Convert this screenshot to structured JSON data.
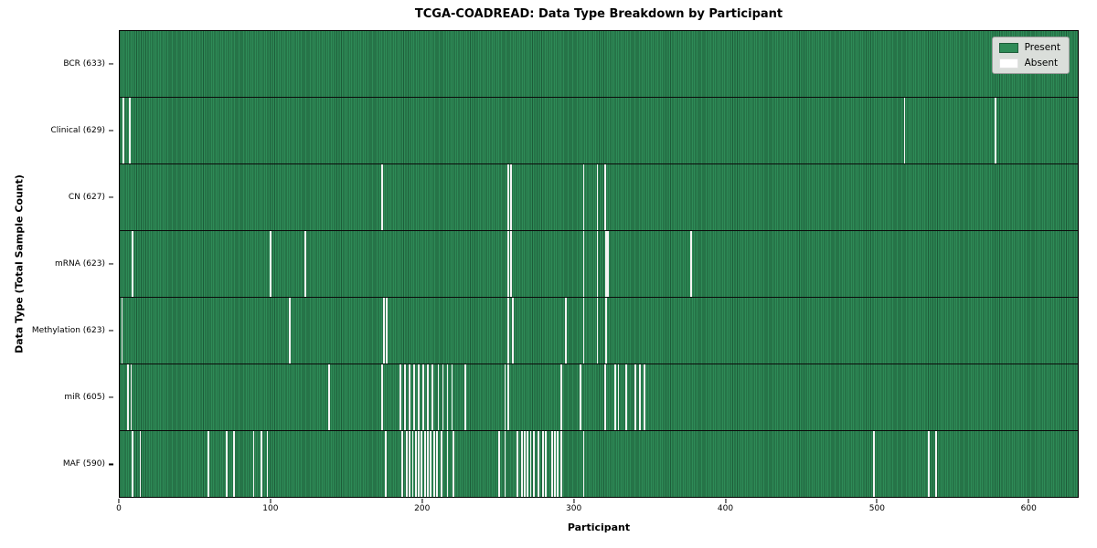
{
  "chart_data": {
    "type": "heatmap",
    "title": "TCGA-COADREAD: Data Type Breakdown by Participant",
    "xlabel": "Participant",
    "ylabel": "Data Type (Total Sample Count)",
    "x_max": 633,
    "x_ticks": [
      0,
      100,
      200,
      300,
      400,
      500,
      600
    ],
    "grid": false,
    "legend_position": "upper right",
    "legend_labels": [
      "Present",
      "Absent"
    ],
    "cell_semantics": "each column is one participant; green = data type present, white = absent",
    "rows": [
      {
        "name": "bcr",
        "label": "BCR (633)",
        "present_count": 633,
        "absent_participants": []
      },
      {
        "name": "clinical",
        "label": "Clinical (629)",
        "present_count": 629,
        "absent_participants": [
          2,
          6,
          518,
          578
        ]
      },
      {
        "name": "cn",
        "label": "CN (627)",
        "present_count": 627,
        "absent_participants": [
          173,
          256,
          258,
          306,
          315,
          320
        ]
      },
      {
        "name": "mrna",
        "label": "mRNA (623)",
        "present_count": 623,
        "absent_participants": [
          8,
          99,
          122,
          256,
          258,
          306,
          315,
          321,
          322,
          377
        ]
      },
      {
        "name": "methylation",
        "label": "Methylation (623)",
        "present_count": 623,
        "absent_participants": [
          1,
          112,
          174,
          176,
          256,
          259,
          294,
          306,
          315,
          321
        ]
      },
      {
        "name": "mir",
        "label": "miR (605)",
        "present_count": 605,
        "absent_participants": [
          5,
          7,
          138,
          173,
          185,
          188,
          191,
          194,
          197,
          200,
          203,
          206,
          210,
          213,
          216,
          219,
          228,
          254,
          256,
          291,
          304,
          320,
          327,
          329,
          334,
          340,
          343,
          346
        ]
      },
      {
        "name": "maf",
        "label": "MAF (590)",
        "present_count": 590,
        "absent_participants": [
          8,
          13,
          58,
          70,
          75,
          88,
          93,
          97,
          175,
          186,
          189,
          191,
          193,
          195,
          197,
          199,
          201,
          203,
          205,
          207,
          209,
          212,
          216,
          220,
          250,
          254,
          262,
          265,
          267,
          269,
          271,
          273,
          276,
          279,
          281,
          285,
          287,
          289,
          291,
          306,
          498,
          534,
          539
        ]
      }
    ],
    "colors": {
      "present_fill": "#2e8b57",
      "present_edge": "#1d5c39",
      "absent_fill": "#f4f4f4",
      "absent_swatch": "#ffffff",
      "legend_bg": "#dadeda",
      "legend_border": "#9c9c9c"
    }
  }
}
